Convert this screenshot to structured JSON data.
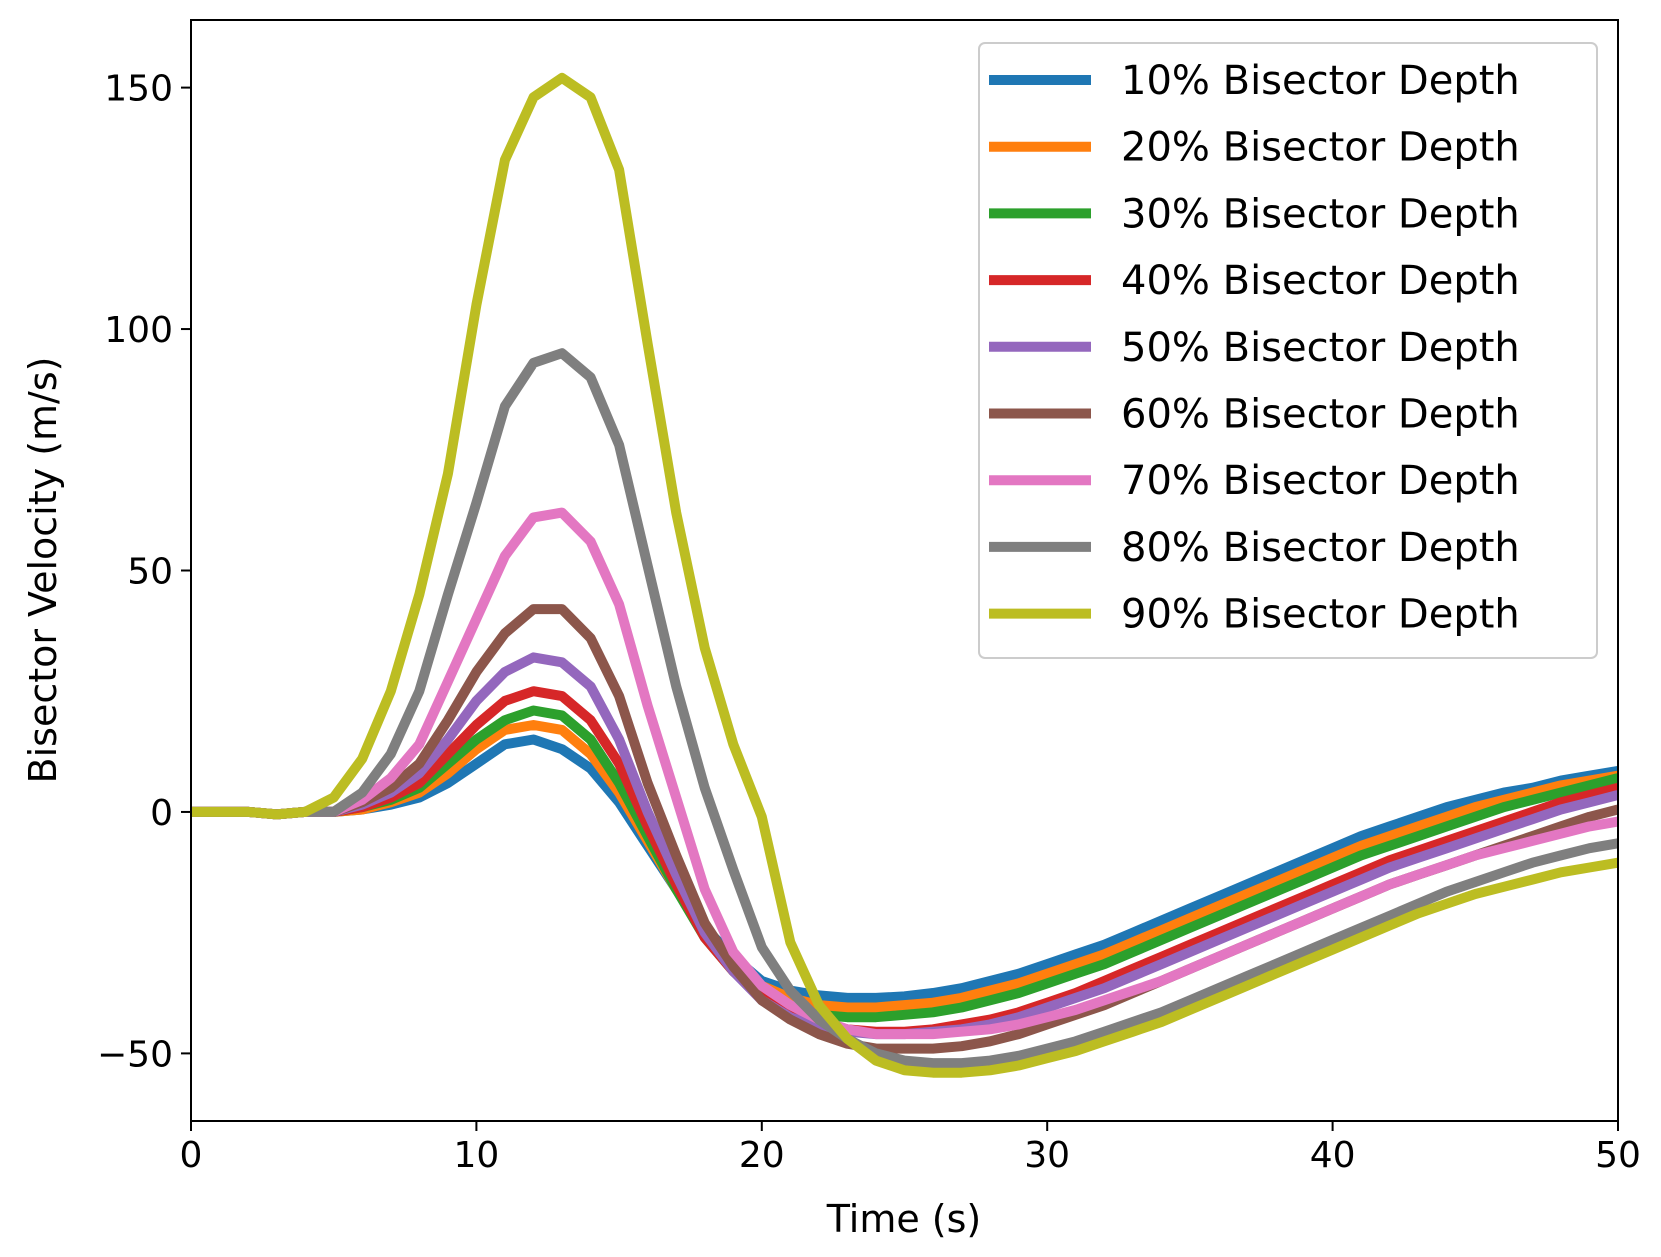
{
  "chart_data": {
    "type": "line",
    "xlabel": "Time (s)",
    "ylabel": "Bisector Velocity (m/s)",
    "xlim": [
      0,
      50
    ],
    "ylim": [
      -64,
      164
    ],
    "xticks": [
      0,
      10,
      20,
      30,
      40,
      50
    ],
    "xtick_labels": [
      "0",
      "10",
      "20",
      "30",
      "40",
      "50"
    ],
    "yticks": [
      -50,
      0,
      50,
      100,
      150
    ],
    "ytick_labels": [
      "−50",
      "0",
      "50",
      "100",
      "150"
    ],
    "grid": false,
    "legend_position": "top-right",
    "x": [
      0,
      1,
      2,
      3,
      4,
      5,
      6,
      7,
      8,
      9,
      10,
      11,
      12,
      13,
      14,
      15,
      16,
      17,
      18,
      19,
      20,
      21,
      22,
      23,
      24,
      25,
      26,
      27,
      28,
      29,
      30,
      31,
      32,
      33,
      34,
      35,
      36,
      37,
      38,
      39,
      40,
      41,
      42,
      43,
      44,
      45,
      46,
      47,
      48,
      49,
      50
    ],
    "series": [
      {
        "name": "10% Bisector Depth",
        "color": "#1f77b4",
        "values": [
          0,
          0,
          0,
          -0.5,
          0,
          0,
          0.5,
          1.5,
          3,
          6,
          10,
          14,
          15,
          13,
          9,
          2,
          -7,
          -16,
          -24,
          -30,
          -35,
          -37,
          -38,
          -38.5,
          -38.5,
          -38.2,
          -37.5,
          -36.5,
          -35,
          -33.5,
          -31.5,
          -29.5,
          -27.5,
          -25,
          -22.5,
          -20,
          -17.5,
          -15,
          -12.5,
          -10,
          -7.5,
          -5,
          -3,
          -1,
          1,
          2.5,
          4,
          5,
          6.5,
          7.5,
          8.5
        ]
      },
      {
        "name": "20% Bisector Depth",
        "color": "#ff7f0e",
        "values": [
          0,
          0,
          0,
          -0.5,
          0,
          0,
          0.5,
          2,
          4,
          8,
          13,
          17,
          18,
          17,
          12,
          4,
          -6,
          -16,
          -25,
          -31,
          -36,
          -38.5,
          -40,
          -40.5,
          -40.5,
          -40,
          -39.5,
          -38.5,
          -37,
          -35.5,
          -33.5,
          -31.5,
          -29.5,
          -27,
          -24.5,
          -22,
          -19.5,
          -17,
          -14.5,
          -12,
          -9.5,
          -7,
          -5,
          -3,
          -1,
          1,
          2.5,
          4,
          5.5,
          6.5,
          7.5
        ]
      },
      {
        "name": "30% Bisector Depth",
        "color": "#2ca02c",
        "values": [
          0,
          0,
          0,
          -0.5,
          0,
          0,
          1,
          2.5,
          5,
          10,
          15,
          19,
          21,
          20,
          15,
          6,
          -5,
          -16,
          -26,
          -33,
          -38,
          -41,
          -42,
          -42.5,
          -42.5,
          -42,
          -41.5,
          -40.5,
          -39,
          -37.5,
          -35.5,
          -33.5,
          -31.5,
          -29,
          -26.5,
          -24,
          -21.5,
          -19,
          -16.5,
          -14,
          -11.5,
          -9,
          -7,
          -5,
          -3,
          -1,
          1,
          2.5,
          4,
          5.5,
          7
        ]
      },
      {
        "name": "40% Bisector Depth",
        "color": "#d62728",
        "values": [
          0,
          0,
          0,
          -0.5,
          0,
          0,
          1,
          3,
          6,
          12,
          18,
          23,
          25,
          24,
          19,
          10,
          -3,
          -15,
          -26,
          -33,
          -38,
          -42,
          -44,
          -45,
          -45.5,
          -45.5,
          -45,
          -44,
          -43,
          -41.5,
          -39.5,
          -37.5,
          -35,
          -32.5,
          -30,
          -27.5,
          -25,
          -22.5,
          -20,
          -17.5,
          -15,
          -12.5,
          -10,
          -8,
          -6,
          -4,
          -2,
          0,
          2,
          3.5,
          5
        ]
      },
      {
        "name": "50% Bisector Depth",
        "color": "#9467bd",
        "values": [
          0,
          0,
          0,
          -0.5,
          0,
          0,
          1.5,
          4,
          8,
          15,
          23,
          29,
          32,
          31,
          26,
          15,
          0,
          -13,
          -25,
          -33,
          -39,
          -42.5,
          -44.5,
          -45.5,
          -46,
          -46,
          -45.5,
          -45,
          -44,
          -42.5,
          -40.5,
          -38.5,
          -36.5,
          -34,
          -31.5,
          -29,
          -26.5,
          -24,
          -21.5,
          -19,
          -16.5,
          -14,
          -11.5,
          -9.5,
          -7.5,
          -5.5,
          -3.5,
          -1.5,
          0.5,
          2,
          3.5
        ]
      },
      {
        "name": "60% Bisector Depth",
        "color": "#8c564b",
        "values": [
          0,
          0,
          0,
          -0.5,
          0,
          0,
          2,
          5,
          10,
          19,
          29,
          37,
          42,
          42,
          36,
          24,
          6,
          -9,
          -23,
          -32,
          -39,
          -43,
          -46,
          -48,
          -49,
          -49,
          -49,
          -48.5,
          -47.5,
          -46,
          -44,
          -42,
          -40,
          -37.5,
          -35,
          -32.5,
          -30,
          -27.5,
          -25,
          -22.5,
          -20,
          -17.5,
          -15,
          -13,
          -11,
          -9,
          -7,
          -5,
          -3,
          -1,
          0.5
        ]
      },
      {
        "name": "70% Bisector Depth",
        "color": "#e377c2",
        "values": [
          0,
          0,
          0,
          -0.5,
          0,
          0,
          2.5,
          7,
          14,
          27,
          40,
          53,
          61,
          62,
          56,
          43,
          22,
          3,
          -16,
          -29,
          -36,
          -40,
          -43,
          -45,
          -46,
          -46,
          -46,
          -45.5,
          -45,
          -44,
          -42.5,
          -41,
          -39,
          -37,
          -35,
          -32.5,
          -30,
          -27.5,
          -25,
          -22.5,
          -20,
          -17.5,
          -15,
          -13,
          -11,
          -9,
          -7.5,
          -6,
          -4.5,
          -3,
          -2
        ]
      },
      {
        "name": "80% Bisector Depth",
        "color": "#7f7f7f",
        "values": [
          0,
          0,
          0,
          -0.5,
          0,
          0,
          4,
          12,
          25,
          45,
          64,
          84,
          93,
          95,
          90,
          76,
          51,
          26,
          5,
          -12,
          -28,
          -37,
          -43,
          -47,
          -50,
          -51.5,
          -52,
          -52,
          -51.5,
          -50.5,
          -49,
          -47.5,
          -45.5,
          -43.5,
          -41.5,
          -39,
          -36.5,
          -34,
          -31.5,
          -29,
          -26.5,
          -24,
          -21.5,
          -19,
          -16.5,
          -14.5,
          -12.5,
          -10.5,
          -9,
          -7.5,
          -6.5
        ]
      },
      {
        "name": "90% Bisector Depth",
        "color": "#bcbd22",
        "values": [
          0,
          0,
          0,
          -0.5,
          0,
          3,
          11,
          25,
          45,
          70,
          105,
          135,
          148,
          152,
          148,
          133,
          97,
          62,
          34,
          14,
          -1,
          -27,
          -40,
          -47,
          -51.5,
          -53.5,
          -54,
          -54,
          -53.5,
          -52.5,
          -51,
          -49.5,
          -47.5,
          -45.5,
          -43.5,
          -41,
          -38.5,
          -36,
          -33.5,
          -31,
          -28.5,
          -26,
          -23.5,
          -21,
          -19,
          -17,
          -15.5,
          -14,
          -12.5,
          -11.5,
          -10.5
        ]
      }
    ]
  }
}
